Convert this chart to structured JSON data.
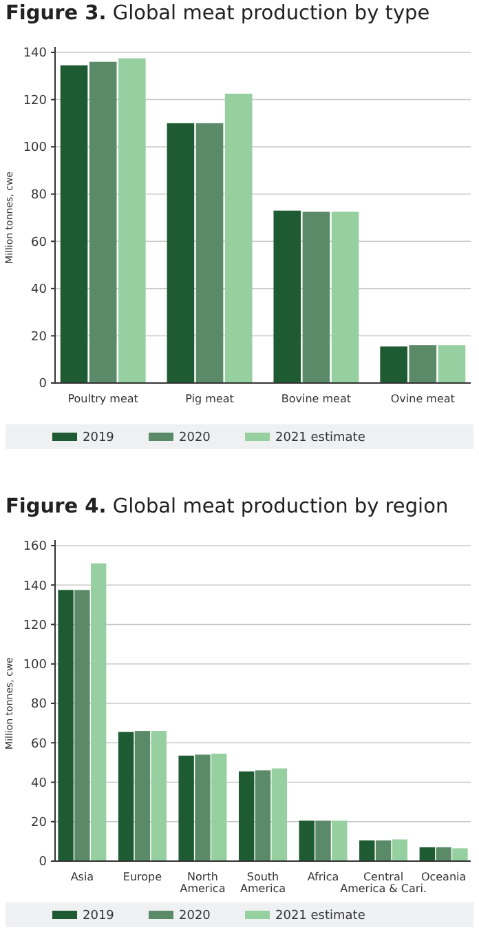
{
  "chart_data": [
    {
      "type": "bar",
      "title": "Figure 3. Global meat production by type",
      "ylabel": "Million tonnes, cwe",
      "categories": [
        "Poultry meat",
        "Pig meat",
        "Bovine meat",
        "Ovine meat"
      ],
      "series": [
        {
          "name": "2019",
          "color": "#1e5a32",
          "values": [
            134.5,
            110,
            73,
            15.5
          ]
        },
        {
          "name": "2020",
          "color": "#5a8a68",
          "values": [
            136,
            110,
            72.5,
            16
          ]
        },
        {
          "name": "2021 estimate",
          "color": "#96d0a0",
          "values": [
            137.5,
            122.5,
            72.5,
            16
          ]
        }
      ],
      "ylim": [
        0,
        140
      ],
      "yticks": [
        0,
        20,
        40,
        60,
        80,
        100,
        120,
        140
      ],
      "grid": "y",
      "legend": "bottom"
    },
    {
      "type": "bar",
      "title": "Figure 4. Global meat production by region",
      "ylabel": "Million tonnes, cwe",
      "categories": [
        "Asia",
        "Europe",
        "North America",
        "South America",
        "Africa",
        "Central America & Cari.",
        "Oceania"
      ],
      "series": [
        {
          "name": "2019",
          "color": "#1e5a32",
          "values": [
            137.5,
            65.5,
            53.5,
            45.5,
            20.5,
            10.5,
            7
          ]
        },
        {
          "name": "2020",
          "color": "#5a8a68",
          "values": [
            137.5,
            66,
            54,
            46,
            20.5,
            10.5,
            7
          ]
        },
        {
          "name": "2021 estimate",
          "color": "#96d0a0",
          "values": [
            151,
            66,
            54.5,
            47,
            20.5,
            11,
            6.5
          ]
        }
      ],
      "ylim": [
        0,
        160
      ],
      "yticks": [
        0,
        20,
        40,
        60,
        80,
        100,
        120,
        140,
        160
      ],
      "grid": "y",
      "legend": "bottom"
    }
  ]
}
